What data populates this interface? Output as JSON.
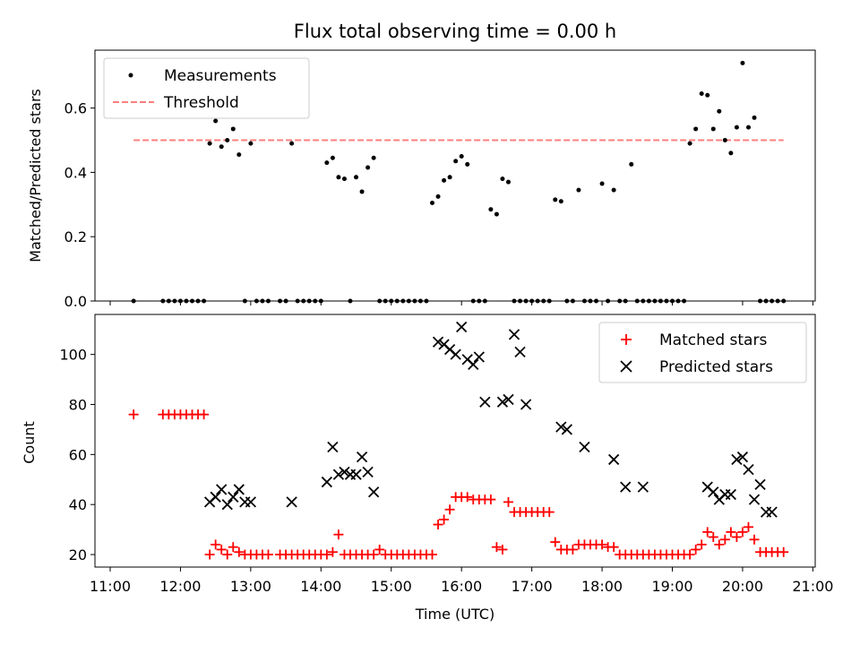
{
  "chart_data": [
    {
      "type": "scatter",
      "title": "Flux total observing time = 0.00 h",
      "xlabel": "",
      "ylabel": "Matched/Predicted stars",
      "xlim": [
        "11:00",
        "21:00"
      ],
      "ylim": [
        0,
        0.78
      ],
      "yticks": [
        0.0,
        0.2,
        0.4,
        0.6
      ],
      "ytick_labels": [
        "0.0",
        "0.2",
        "0.4",
        "0.6"
      ],
      "legend_position": "top-left",
      "series": [
        {
          "name": "Measurements",
          "kind": "scatter",
          "marker": "dot",
          "color": "#000000",
          "x": [
            "11:20",
            "11:45",
            "11:50",
            "11:55",
            "12:00",
            "12:05",
            "12:10",
            "12:15",
            "12:20",
            "12:25",
            "12:30",
            "12:35",
            "12:40",
            "12:45",
            "12:50",
            "12:55",
            "13:00",
            "13:05",
            "13:10",
            "13:15",
            "13:25",
            "13:30",
            "13:35",
            "13:40",
            "13:45",
            "13:50",
            "13:55",
            "14:00",
            "14:05",
            "14:10",
            "14:15",
            "14:20",
            "14:25",
            "14:30",
            "14:35",
            "14:40",
            "14:45",
            "14:50",
            "14:55",
            "15:00",
            "15:05",
            "15:10",
            "15:15",
            "15:20",
            "15:25",
            "15:30",
            "15:35",
            "15:40",
            "15:45",
            "15:50",
            "15:55",
            "16:00",
            "16:05",
            "16:10",
            "16:15",
            "16:20",
            "16:25",
            "16:30",
            "16:35",
            "16:40",
            "16:45",
            "16:50",
            "16:55",
            "17:00",
            "17:05",
            "17:10",
            "17:15",
            "17:20",
            "17:25",
            "17:30",
            "17:35",
            "17:40",
            "17:45",
            "17:50",
            "17:55",
            "18:00",
            "18:05",
            "18:10",
            "18:15",
            "18:20",
            "18:25",
            "18:30",
            "18:35",
            "18:40",
            "18:45",
            "18:50",
            "18:55",
            "19:00",
            "19:05",
            "19:10",
            "19:15",
            "19:20",
            "19:25",
            "19:30",
            "19:35",
            "19:40",
            "19:45",
            "19:50",
            "19:55",
            "20:00",
            "20:05",
            "20:10",
            "20:15",
            "20:20",
            "20:25",
            "20:30",
            "20:35"
          ],
          "y": [
            0.0,
            0.0,
            0.0,
            0.0,
            0.0,
            0.0,
            0.0,
            0.0,
            0.0,
            0.49,
            0.56,
            0.48,
            0.5,
            0.535,
            0.455,
            0.0,
            0.49,
            0.0,
            0.0,
            0.0,
            0.0,
            0.0,
            0.49,
            0.0,
            0.0,
            0.0,
            0.0,
            0.0,
            0.43,
            0.445,
            0.385,
            0.38,
            0.0,
            0.385,
            0.34,
            0.415,
            0.445,
            0.0,
            0.0,
            0.0,
            0.0,
            0.0,
            0.0,
            0.0,
            0.0,
            0.0,
            0.305,
            0.325,
            0.375,
            0.385,
            0.435,
            0.45,
            0.425,
            0.0,
            0.0,
            0.0,
            0.285,
            0.27,
            0.38,
            0.37,
            0.0,
            0.0,
            0.0,
            0.0,
            0.0,
            0.0,
            0.0,
            0.315,
            0.31,
            0.0,
            0.0,
            0.345,
            0.0,
            0.0,
            0.0,
            0.365,
            0.0,
            0.345,
            0.0,
            0.0,
            0.425,
            0.0,
            0.0,
            0.0,
            0.0,
            0.0,
            0.0,
            0.0,
            0.0,
            0.0,
            0.49,
            0.535,
            0.645,
            0.64,
            0.535,
            0.59,
            0.5,
            0.46,
            0.54,
            0.74,
            0.54,
            0.57,
            0.0,
            0.0,
            0.0,
            0.0,
            0.0
          ]
        },
        {
          "name": "Threshold",
          "kind": "line",
          "style": "dashed",
          "color": "#ff7f7f",
          "x": [
            "11:20",
            "20:35"
          ],
          "y": [
            0.5,
            0.5
          ]
        }
      ]
    },
    {
      "type": "scatter",
      "title": "",
      "xlabel": "Time (UTC)",
      "ylabel": "Count",
      "xlim": [
        "11:00",
        "21:00"
      ],
      "ylim": [
        15,
        116
      ],
      "yticks": [
        20,
        40,
        60,
        80,
        100
      ],
      "ytick_labels": [
        "20",
        "40",
        "60",
        "80",
        "100"
      ],
      "xticks": [
        "11:00",
        "12:00",
        "13:00",
        "14:00",
        "15:00",
        "16:00",
        "17:00",
        "18:00",
        "19:00",
        "20:00",
        "21:00"
      ],
      "legend_position": "top-right",
      "series": [
        {
          "name": "Matched stars",
          "kind": "scatter",
          "marker": "plus",
          "color": "#ff0000",
          "x": [
            "11:20",
            "11:45",
            "11:50",
            "11:55",
            "12:00",
            "12:05",
            "12:10",
            "12:15",
            "12:20",
            "12:25",
            "12:30",
            "12:35",
            "12:40",
            "12:45",
            "12:50",
            "12:55",
            "13:00",
            "13:05",
            "13:10",
            "13:15",
            "13:25",
            "13:30",
            "13:35",
            "13:40",
            "13:45",
            "13:50",
            "13:55",
            "14:00",
            "14:05",
            "14:10",
            "14:15",
            "14:20",
            "14:25",
            "14:30",
            "14:35",
            "14:40",
            "14:45",
            "14:50",
            "14:55",
            "15:00",
            "15:05",
            "15:10",
            "15:15",
            "15:20",
            "15:25",
            "15:30",
            "15:35",
            "15:40",
            "15:45",
            "15:50",
            "15:55",
            "16:00",
            "16:05",
            "16:10",
            "16:15",
            "16:20",
            "16:25",
            "16:30",
            "16:35",
            "16:40",
            "16:45",
            "16:50",
            "16:55",
            "17:00",
            "17:05",
            "17:10",
            "17:15",
            "17:20",
            "17:25",
            "17:30",
            "17:35",
            "17:40",
            "17:45",
            "17:50",
            "17:55",
            "18:00",
            "18:05",
            "18:10",
            "18:15",
            "18:20",
            "18:25",
            "18:30",
            "18:35",
            "18:40",
            "18:45",
            "18:50",
            "18:55",
            "19:00",
            "19:05",
            "19:10",
            "19:15",
            "19:20",
            "19:25",
            "19:30",
            "19:35",
            "19:40",
            "19:45",
            "19:50",
            "19:55",
            "20:00",
            "20:05",
            "20:10",
            "20:15",
            "20:20",
            "20:25",
            "20:30",
            "20:35"
          ],
          "y": [
            76,
            76,
            76,
            76,
            76,
            76,
            76,
            76,
            76,
            20,
            24,
            22,
            20,
            23,
            21,
            20,
            20,
            20,
            20,
            20,
            20,
            20,
            20,
            20,
            20,
            20,
            20,
            20,
            20,
            21,
            28,
            20,
            20,
            20,
            20,
            20,
            20,
            22,
            20,
            20,
            20,
            20,
            20,
            20,
            20,
            20,
            20,
            32,
            34,
            38,
            43,
            43,
            43,
            42,
            42,
            42,
            42,
            23,
            22,
            41,
            37,
            37,
            37,
            37,
            37,
            37,
            37,
            25,
            22,
            22,
            22,
            24,
            24,
            24,
            24,
            24,
            23,
            23,
            20,
            20,
            20,
            20,
            20,
            20,
            20,
            20,
            20,
            20,
            20,
            20,
            20,
            22,
            24,
            29,
            27,
            24,
            26,
            29,
            27,
            29,
            31,
            26,
            21,
            21,
            21,
            21,
            21
          ]
        },
        {
          "name": "Predicted stars",
          "kind": "scatter",
          "marker": "x",
          "color": "#000000",
          "x": [
            "12:25",
            "12:30",
            "12:35",
            "12:40",
            "12:45",
            "12:50",
            "12:55",
            "13:00",
            "13:35",
            "14:05",
            "14:10",
            "14:15",
            "14:20",
            "14:25",
            "14:30",
            "14:35",
            "14:40",
            "14:45",
            "15:40",
            "15:45",
            "15:50",
            "15:55",
            "16:00",
            "16:05",
            "16:10",
            "16:15",
            "16:20",
            "16:35",
            "16:40",
            "16:45",
            "16:50",
            "16:55",
            "17:25",
            "17:30",
            "17:45",
            "18:10",
            "18:20",
            "18:35",
            "19:30",
            "19:35",
            "19:40",
            "19:45",
            "19:50",
            "19:55",
            "20:00",
            "20:05",
            "20:10",
            "20:15",
            "20:20",
            "20:25"
          ],
          "y": [
            41,
            43,
            46,
            40,
            43,
            46,
            41,
            41,
            41,
            49,
            63,
            52,
            53,
            52,
            52,
            59,
            53,
            45,
            105,
            104,
            102,
            100,
            111,
            98,
            96,
            99,
            81,
            81,
            82,
            108,
            101,
            80,
            71,
            70,
            63,
            58,
            47,
            47,
            47,
            45,
            42,
            44,
            44,
            58,
            59,
            54,
            42,
            48,
            37,
            37
          ]
        }
      ]
    }
  ]
}
